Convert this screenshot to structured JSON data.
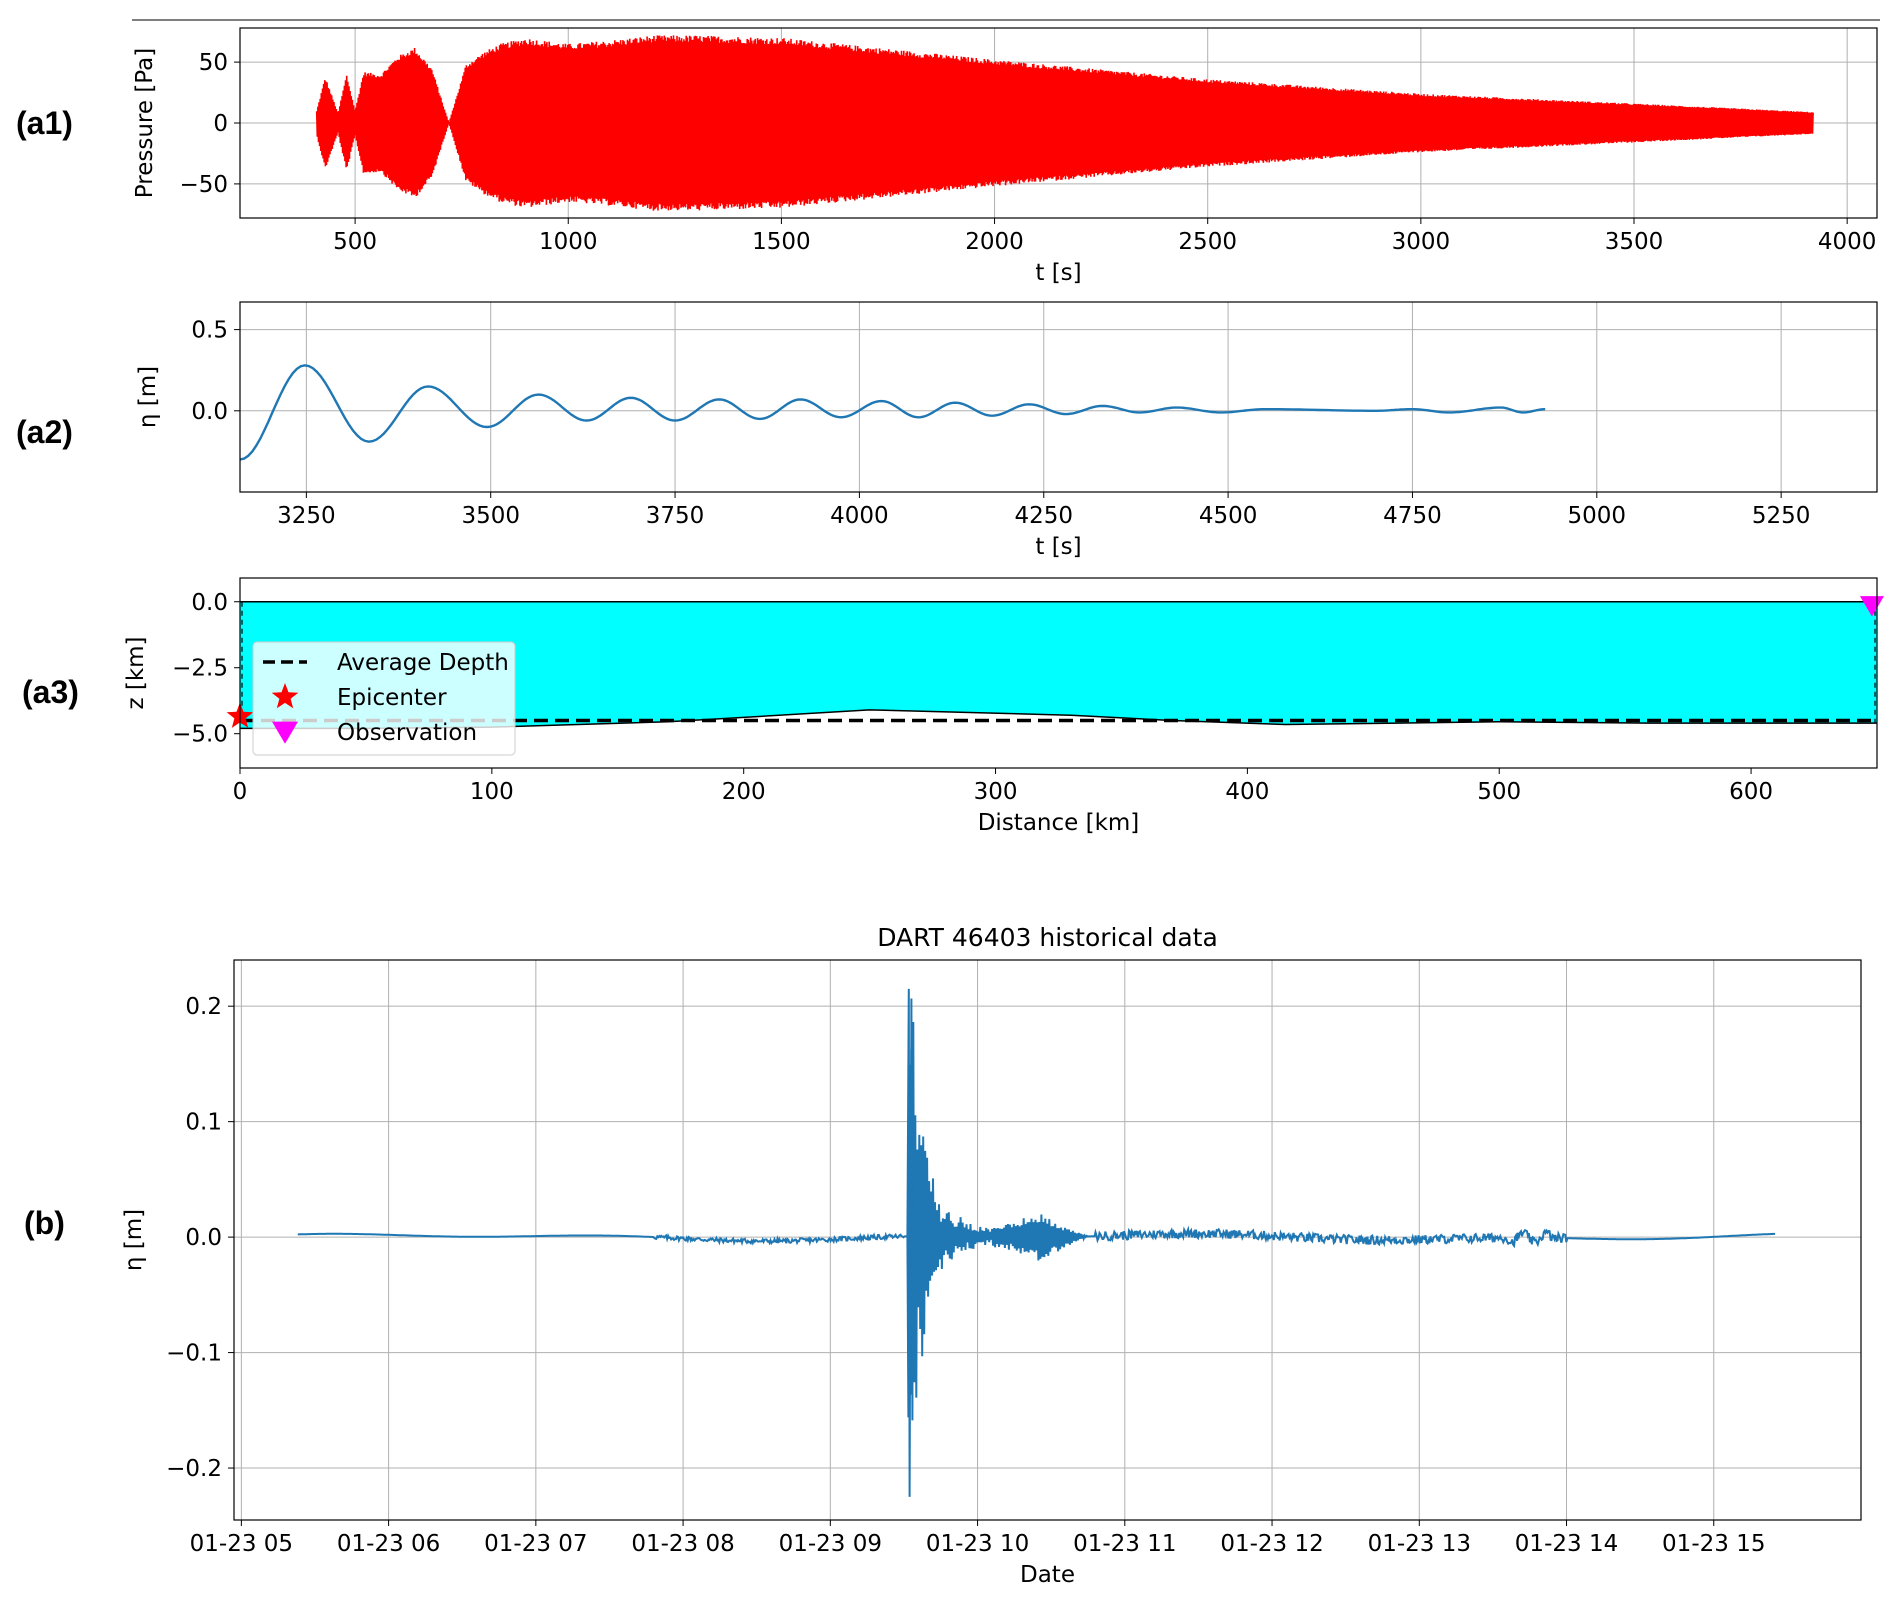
{
  "figure": {
    "panel_tags": [
      "(a1)",
      "(a2)",
      "(a3)",
      "(b)"
    ]
  },
  "chart_data": [
    {
      "id": "a1",
      "type": "line",
      "title": "",
      "xlabel": "t [s]",
      "ylabel": "Pressure [Pa]",
      "xlim": [
        230,
        4070
      ],
      "ylim": [
        -78,
        78
      ],
      "xticks": [
        500,
        1000,
        1500,
        2000,
        2500,
        3000,
        3500,
        4000
      ],
      "yticks": [
        -50,
        0,
        50
      ],
      "grid": true,
      "color": "#ff0000",
      "signal": {
        "t_start": 410,
        "t_end": 3920,
        "envelope_t": [
          410,
          430,
          460,
          480,
          500,
          520,
          560,
          600,
          640,
          680,
          720,
          760,
          800,
          840,
          900,
          1000,
          1100,
          1200,
          1300,
          1500,
          2000,
          2500,
          3000,
          3500,
          3920
        ],
        "envelope_amp": [
          10,
          38,
          8,
          40,
          10,
          42,
          40,
          55,
          62,
          45,
          0,
          48,
          58,
          65,
          70,
          65,
          68,
          72,
          72,
          70,
          52,
          36,
          24,
          16,
          9
        ]
      }
    },
    {
      "id": "a2",
      "type": "line",
      "title": "",
      "xlabel": "t [s]",
      "ylabel": "η [m]",
      "xlim": [
        3160,
        5380
      ],
      "ylim": [
        -0.5,
        0.67
      ],
      "xticks": [
        3250,
        3500,
        3750,
        4000,
        4250,
        4500,
        4750,
        5000,
        5250
      ],
      "yticks": [
        0.0,
        0.5
      ],
      "grid": true,
      "color": "#1f77b4",
      "signal": {
        "t_start": 3160,
        "t_end": 4930,
        "extrema": [
          [
            3160,
            -0.3
          ],
          [
            3248,
            0.28
          ],
          [
            3335,
            -0.19
          ],
          [
            3415,
            0.15
          ],
          [
            3495,
            -0.1
          ],
          [
            3565,
            0.1
          ],
          [
            3630,
            -0.06
          ],
          [
            3690,
            0.08
          ],
          [
            3750,
            -0.06
          ],
          [
            3810,
            0.07
          ],
          [
            3865,
            -0.05
          ],
          [
            3920,
            0.07
          ],
          [
            3975,
            -0.04
          ],
          [
            4030,
            0.06
          ],
          [
            4080,
            -0.04
          ],
          [
            4130,
            0.05
          ],
          [
            4180,
            -0.03
          ],
          [
            4230,
            0.04
          ],
          [
            4280,
            -0.02
          ],
          [
            4330,
            0.03
          ],
          [
            4380,
            -0.01
          ],
          [
            4430,
            0.02
          ],
          [
            4490,
            -0.01
          ],
          [
            4550,
            0.01
          ],
          [
            4700,
            0.0
          ],
          [
            4750,
            0.01
          ],
          [
            4800,
            -0.01
          ],
          [
            4870,
            0.02
          ],
          [
            4900,
            -0.01
          ],
          [
            4930,
            0.01
          ]
        ]
      }
    },
    {
      "id": "a3",
      "type": "area",
      "title": "",
      "xlabel": "Distance [km]",
      "ylabel": "z [km]",
      "xlim": [
        0,
        650
      ],
      "ylim": [
        -6.3,
        0.9
      ],
      "xticks": [
        0,
        100,
        200,
        300,
        400,
        500,
        600
      ],
      "yticks": [
        -5.0,
        -2.5,
        0.0
      ],
      "grid": false,
      "fill_color": "#00ffff",
      "bathymetry": {
        "x": [
          0,
          50,
          100,
          170,
          250,
          330,
          370,
          415,
          500,
          560,
          650
        ],
        "z": [
          -4.8,
          -4.8,
          -4.75,
          -4.55,
          -4.1,
          -4.3,
          -4.5,
          -4.65,
          -4.55,
          -4.6,
          -4.6
        ]
      },
      "average_depth": -4.5,
      "epicenter": {
        "x": 0,
        "z": -4.35
      },
      "observation": {
        "x": 648,
        "z": 0.0
      },
      "legend": {
        "position": "center-left",
        "entries": [
          {
            "label": "Average Depth",
            "marker": "dashed-line",
            "color": "#000000"
          },
          {
            "label": "Epicenter",
            "marker": "star",
            "color": "#ff0000"
          },
          {
            "label": "Observation",
            "marker": "triangle-down",
            "color": "#ff00ff"
          }
        ]
      }
    },
    {
      "id": "b",
      "type": "line",
      "title": "DART 46403 historical data",
      "xlabel": "Date",
      "ylabel": "η [m]",
      "xlim": [
        "01-23 04:57",
        "01-23 16:00"
      ],
      "ylim": [
        -0.245,
        0.24
      ],
      "xticks": [
        "01-23 05",
        "01-23 06",
        "01-23 07",
        "01-23 08",
        "01-23 09",
        "01-23 10",
        "01-23 11",
        "01-23 12",
        "01-23 13",
        "01-23 14",
        "01-23 15"
      ],
      "yticks": [
        -0.2,
        -0.1,
        0.0,
        0.1,
        0.2
      ],
      "grid": true,
      "color": "#1f77b4",
      "x_start": "01-23 05:23",
      "x_end": "01-23 15:25",
      "events": [
        {
          "time": "01-23 09:32",
          "min": -0.225,
          "max": 0.215
        },
        {
          "time": "01-23 09:33",
          "min": -0.09,
          "max": 0.163
        },
        {
          "time": "01-23 09:37",
          "min": -0.03,
          "max": 0.053
        },
        {
          "time": "01-23 10:24",
          "min": -0.036,
          "max": 0.022
        }
      ]
    }
  ]
}
